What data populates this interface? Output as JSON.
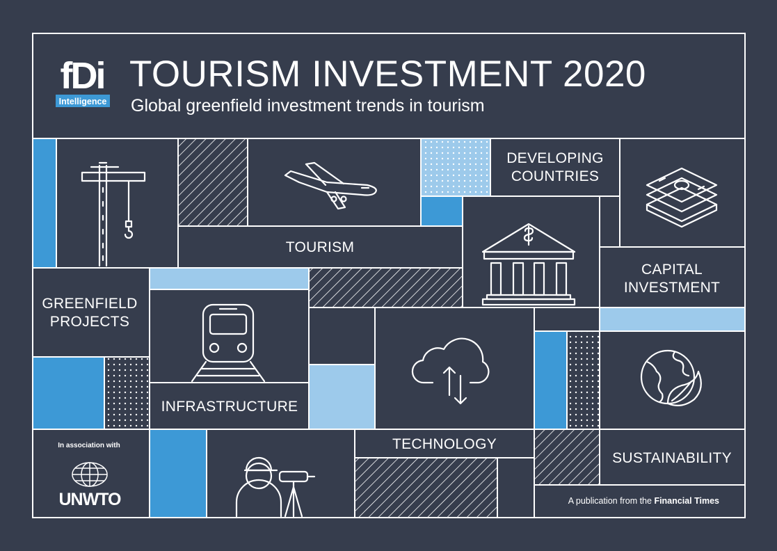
{
  "logo": {
    "brand": "fDi",
    "sub": "Intelligence"
  },
  "header": {
    "title": "TOURISM INVESTMENT 2020",
    "subtitle": "Global greenfield investment trends in tourism"
  },
  "tiles": {
    "tourism": "TOURISM",
    "developing_line1": "DEVELOPING",
    "developing_line2": "COUNTRIES",
    "capital_line1": "CAPITAL",
    "capital_line2": "INVESTMENT",
    "greenfield_line1": "GREENFIELD",
    "greenfield_line2": "PROJECTS",
    "infrastructure": "INFRASTRUCTURE",
    "technology": "TECHNOLOGY",
    "sustainability": "SUSTAINABILITY"
  },
  "footer": {
    "association": "In association with",
    "unwto": "UNWTO",
    "publication_prefix": "A publication from the ",
    "publication_name": "Financial Times"
  },
  "icons": [
    "crane-icon",
    "airplane-icon",
    "stacked-money-icon",
    "bank-icon",
    "train-icon",
    "cloud-transfer-icon",
    "globe-leaf-icon",
    "surveyor-icon",
    "un-globe-icon"
  ],
  "colors": {
    "background": "#363d4d",
    "line": "#ffffff",
    "accent_blue": "#3d99d6",
    "light_blue": "#9dcaeb"
  }
}
